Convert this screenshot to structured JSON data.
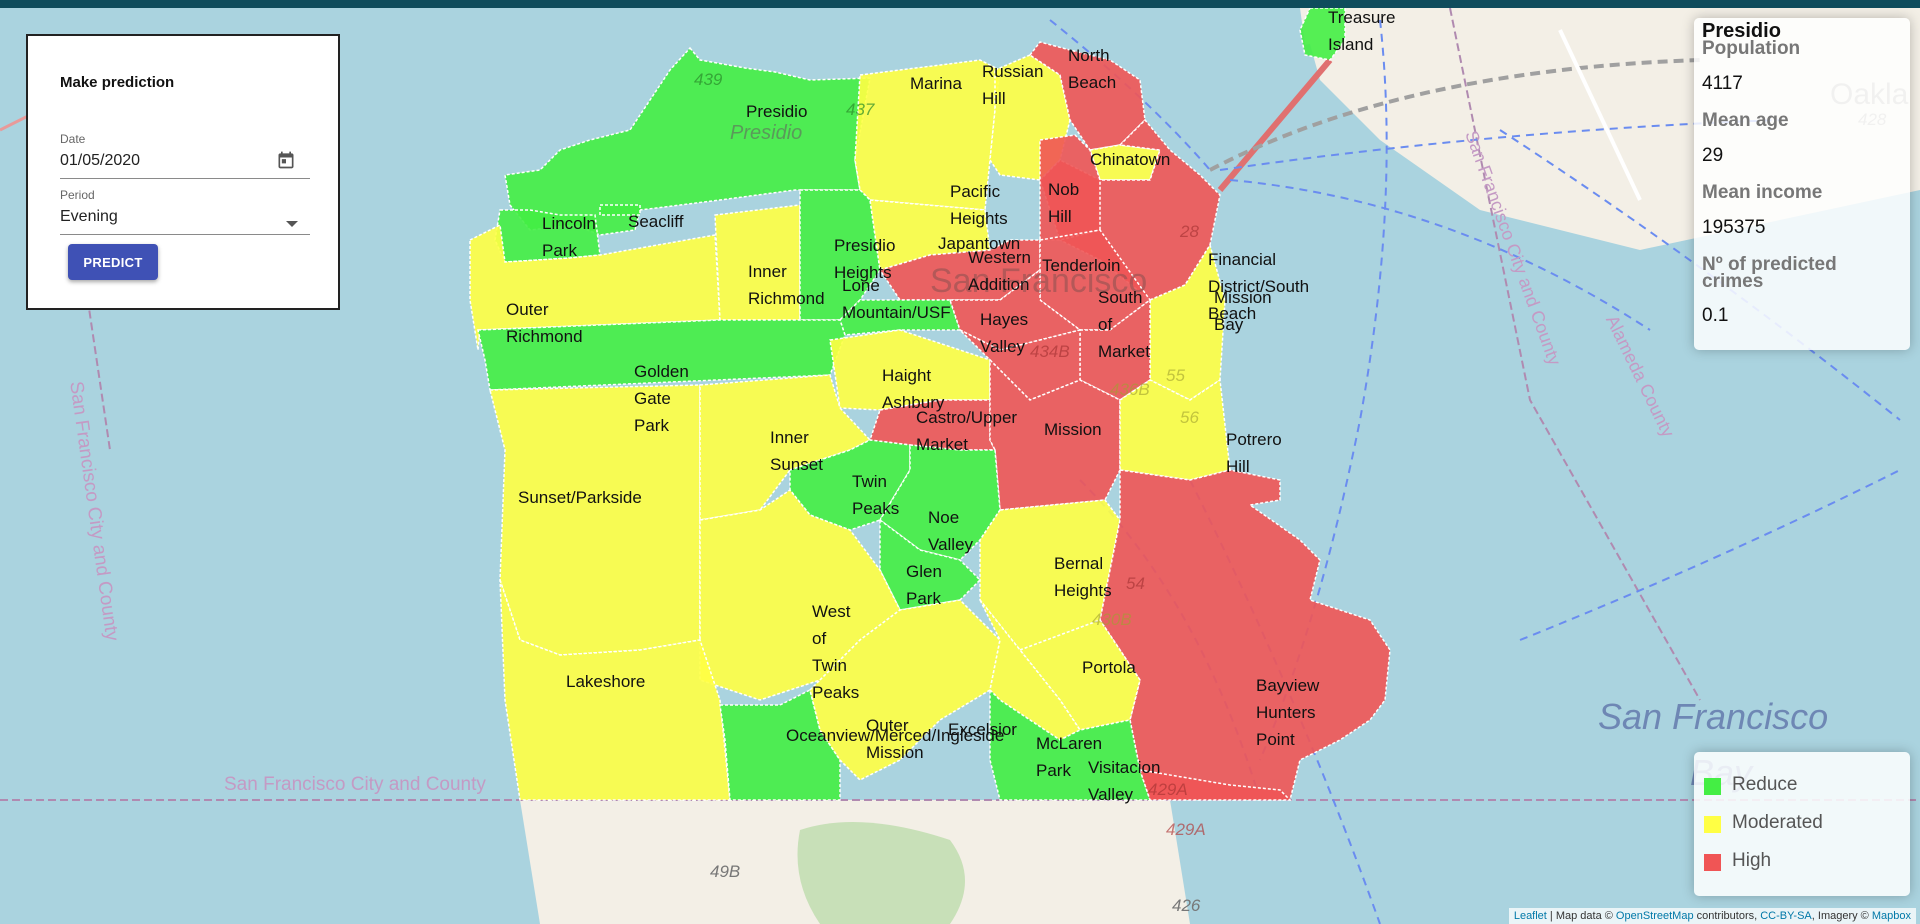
{
  "colors": {
    "reduce": "#44ee44",
    "moderated": "#ffff44",
    "high": "#f05555",
    "water": "#aad3df",
    "land": "#f3efe6"
  },
  "form": {
    "title": "Make prediction",
    "date_label": "Date",
    "date_value": "01/05/2020",
    "date_icon": "calendar-icon",
    "period_label": "Period",
    "period_value": "Evening",
    "period_icon": "caret-down-icon",
    "predict_label": "PREDICT"
  },
  "info": {
    "title": "Presidio",
    "population_label": "Population",
    "population_value": "4117",
    "age_label": "Mean age",
    "age_value": "29",
    "income_label": "Mean income",
    "income_value": "195375",
    "crimes_label": "Nº of predicted crimes",
    "crimes_value": "0.1"
  },
  "legend": {
    "reduce": "Reduce",
    "moderated": "Moderated",
    "high": "High"
  },
  "attribution": {
    "leaflet": "Leaflet",
    "map_data": " | Map data © ",
    "osm": "OpenStreetMap",
    "contributors": " contributors, ",
    "license": "CC-BY-SA",
    "imagery": ", Imagery © ",
    "mapbox": "Mapbox"
  },
  "map": {
    "neighborhoods": [
      {
        "name": "Treasure\nIsland",
        "level": "reduce"
      },
      {
        "name": "Presidio",
        "level": "reduce"
      },
      {
        "name": "Marina",
        "level": "moderated"
      },
      {
        "name": "Russian\nHill",
        "level": "moderated"
      },
      {
        "name": "North\nBeach",
        "level": "high"
      },
      {
        "name": "Chinatown",
        "level": "high"
      },
      {
        "name": "Lincoln\nPark",
        "level": "reduce"
      },
      {
        "name": "Seacliff",
        "level": "reduce"
      },
      {
        "name": "Pacific\nHeights",
        "level": "moderated"
      },
      {
        "name": "Nob\nHill",
        "level": "high"
      },
      {
        "name": "Presidio\nHeights",
        "level": "reduce"
      },
      {
        "name": "Japantown",
        "level": "high"
      },
      {
        "name": "Western\nAddition",
        "level": "high"
      },
      {
        "name": "Tenderloin",
        "level": "high"
      },
      {
        "name": "Financial\nDistrict/South\nBeach",
        "level": "high"
      },
      {
        "name": "Mission\nBay",
        "level": "moderated"
      },
      {
        "name": "Inner\nRichmond",
        "level": "moderated"
      },
      {
        "name": "Lone\nMountain/USF",
        "level": "reduce"
      },
      {
        "name": "South\nof\nMarket",
        "level": "high"
      },
      {
        "name": "Outer\nRichmond",
        "level": "moderated"
      },
      {
        "name": "Hayes\nValley",
        "level": "high"
      },
      {
        "name": "Golden\nGate\nPark",
        "level": "reduce"
      },
      {
        "name": "Haight\nAshbury",
        "level": "moderated"
      },
      {
        "name": "Castro/Upper\nMarket",
        "level": "high"
      },
      {
        "name": "Mission",
        "level": "high"
      },
      {
        "name": "Potrero\nHill",
        "level": "moderated"
      },
      {
        "name": "Inner\nSunset",
        "level": "moderated"
      },
      {
        "name": "Twin\nPeaks",
        "level": "reduce"
      },
      {
        "name": "Sunset/Parkside",
        "level": "moderated"
      },
      {
        "name": "Noe\nValley",
        "level": "reduce"
      },
      {
        "name": "Glen\nPark",
        "level": "reduce"
      },
      {
        "name": "Bernal\nHeights",
        "level": "moderated"
      },
      {
        "name": "West\nof\nTwin\nPeaks",
        "level": "moderated"
      },
      {
        "name": "Lakeshore",
        "level": "moderated"
      },
      {
        "name": "Portola",
        "level": "moderated"
      },
      {
        "name": "Bayview\nHunters\nPoint",
        "level": "high"
      },
      {
        "name": "Outer\nMission",
        "level": "moderated"
      },
      {
        "name": "Oceanview/Merced/Ingleside",
        "level": "reduce"
      },
      {
        "name": "Excelsior",
        "level": "moderated"
      },
      {
        "name": "McLaren\nPark",
        "level": "reduce"
      },
      {
        "name": "Visitacion\nValley",
        "level": "high"
      }
    ],
    "background_labels": [
      {
        "text": "San Francisco City and County",
        "kind": "county"
      },
      {
        "text": "San Francisco City and County",
        "kind": "county"
      },
      {
        "text": "San Francisco City and County",
        "kind": "county"
      },
      {
        "text": "Alameda County",
        "kind": "county"
      },
      {
        "text": "San Francisco",
        "kind": "water"
      },
      {
        "text": "Bay",
        "kind": "water"
      },
      {
        "text": "Presidio",
        "kind": "park"
      },
      {
        "text": "San Francisco",
        "kind": "city"
      },
      {
        "text": "Oakla",
        "kind": "city"
      },
      {
        "text": "439",
        "kind": "shield"
      },
      {
        "text": "437",
        "kind": "shield"
      },
      {
        "text": "428",
        "kind": "shield"
      },
      {
        "text": "434B",
        "kind": "shield"
      },
      {
        "text": "436B",
        "kind": "shield"
      },
      {
        "text": "55",
        "kind": "shield"
      },
      {
        "text": "56",
        "kind": "shield"
      },
      {
        "text": "54",
        "kind": "shield"
      },
      {
        "text": "430B",
        "kind": "shield"
      },
      {
        "text": "429A",
        "kind": "shield"
      },
      {
        "text": "429A",
        "kind": "shield"
      },
      {
        "text": "49B",
        "kind": "shield"
      },
      {
        "text": "426",
        "kind": "shield"
      },
      {
        "text": "28",
        "kind": "shield"
      }
    ]
  }
}
